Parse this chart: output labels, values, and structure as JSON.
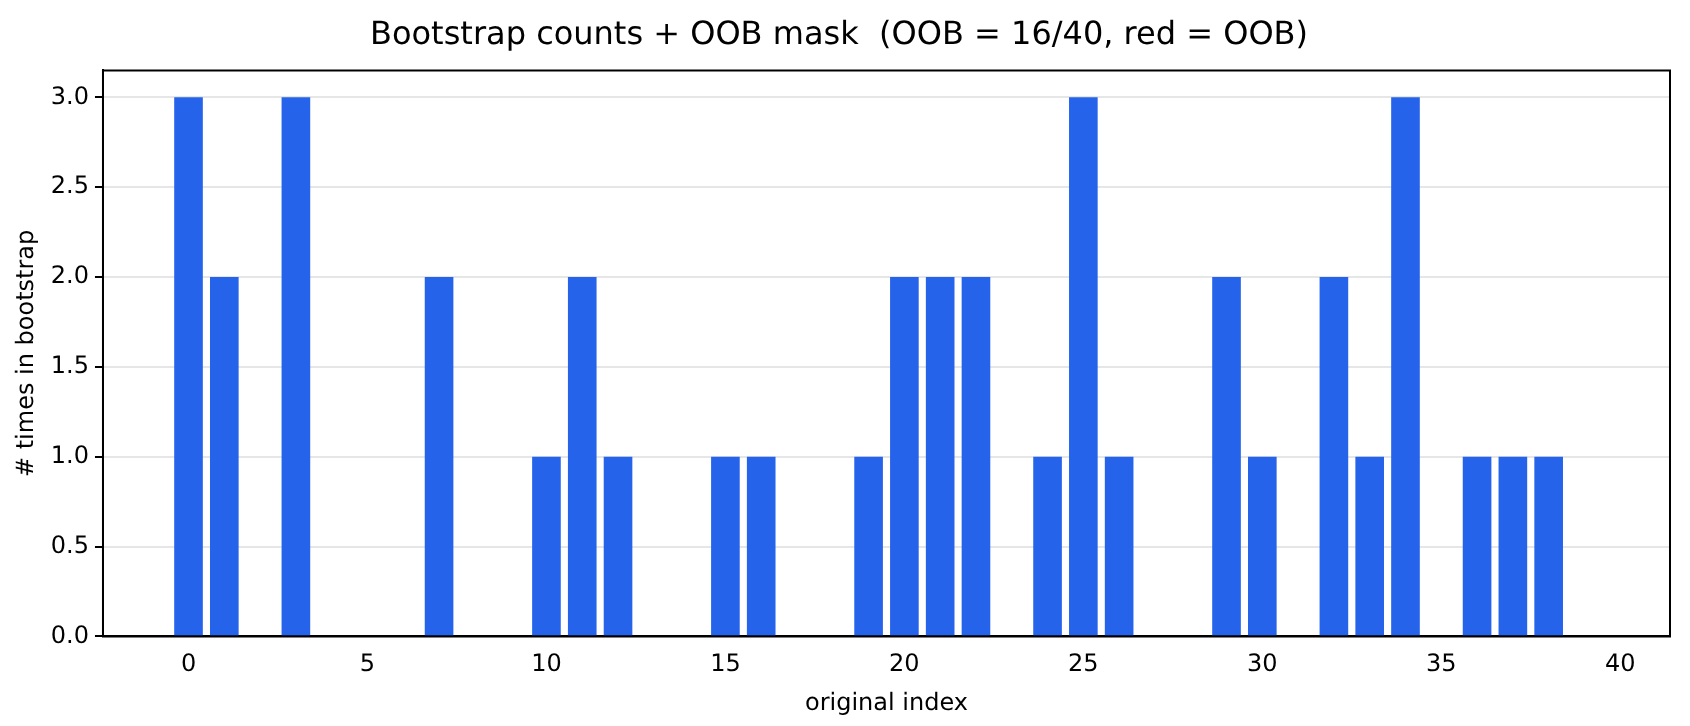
{
  "chart_data": {
    "type": "bar",
    "title": "Bootstrap counts + OOB mask  (OOB = 16/40, red = OOB)",
    "xlabel": "original index",
    "ylabel": "# times in bootstrap",
    "x": [
      0,
      1,
      2,
      3,
      4,
      5,
      6,
      7,
      8,
      9,
      10,
      11,
      12,
      13,
      14,
      15,
      16,
      17,
      18,
      19,
      20,
      21,
      22,
      23,
      24,
      25,
      26,
      27,
      28,
      29,
      30,
      31,
      32,
      33,
      34,
      35,
      36,
      37,
      38,
      39
    ],
    "values": [
      3,
      2,
      0,
      3,
      0,
      0,
      0,
      2,
      0,
      0,
      1,
      2,
      1,
      0,
      0,
      1,
      1,
      0,
      0,
      1,
      2,
      2,
      2,
      0,
      1,
      3,
      1,
      0,
      0,
      2,
      1,
      0,
      2,
      1,
      3,
      0,
      1,
      1,
      1,
      0
    ],
    "color": "#2563eb",
    "xlim": [
      -2.39,
      41.39
    ],
    "xticks": [
      0,
      5,
      10,
      15,
      20,
      25,
      30,
      35,
      40
    ],
    "ylim": [
      0,
      3.15
    ],
    "yticks": [
      {
        "value": 0,
        "label": "0.0"
      },
      {
        "value": 0.5,
        "label": "0.5"
      },
      {
        "value": 1,
        "label": "1.0"
      },
      {
        "value": 1.5,
        "label": "1.5"
      },
      {
        "value": 2,
        "label": "2.0"
      },
      {
        "value": 2.5,
        "label": "2.5"
      },
      {
        "value": 3,
        "label": "3.0"
      }
    ],
    "grid": "y",
    "legend": false
  }
}
